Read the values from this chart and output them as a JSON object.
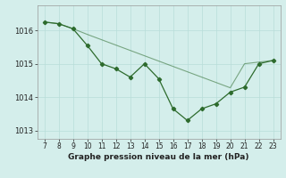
{
  "x": [
    7,
    8,
    9,
    10,
    11,
    12,
    13,
    14,
    15,
    16,
    17,
    18,
    19,
    20,
    21,
    22,
    23
  ],
  "y_main": [
    1016.25,
    1016.2,
    1016.05,
    1015.55,
    1015.0,
    1014.85,
    1014.6,
    1015.0,
    1014.55,
    1013.65,
    1013.3,
    1013.65,
    1013.8,
    1014.15,
    1014.3,
    1015.0,
    1015.1
  ],
  "y_trend": [
    1016.25,
    1016.2,
    1016.05,
    1015.88,
    1015.72,
    1015.56,
    1015.4,
    1015.24,
    1015.08,
    1014.92,
    1014.76,
    1014.6,
    1014.44,
    1014.28,
    1015.0,
    1015.05,
    1015.1
  ],
  "line_color": "#2d6b2d",
  "bg_color": "#d4eeeb",
  "grid_color": "#b8ddd9",
  "xlabel": "Graphe pression niveau de la mer (hPa)",
  "ylim": [
    1012.75,
    1016.75
  ],
  "xlim": [
    6.5,
    23.5
  ],
  "yticks": [
    1013,
    1014,
    1015,
    1016
  ],
  "xticks": [
    7,
    8,
    9,
    10,
    11,
    12,
    13,
    14,
    15,
    16,
    17,
    18,
    19,
    20,
    21,
    22,
    23
  ]
}
